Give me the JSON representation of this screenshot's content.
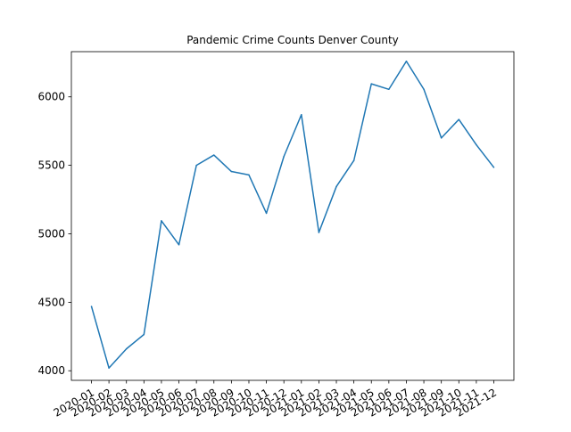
{
  "chart_data": {
    "type": "line",
    "title": "Pandemic Crime Counts Denver County",
    "xlabel": "",
    "ylabel": "",
    "categories": [
      "2020-01",
      "2020-02",
      "2020-03",
      "2020-04",
      "2020-05",
      "2020-06",
      "2020-07",
      "2020-08",
      "2020-09",
      "2020-10",
      "2020-11",
      "2020-12",
      "2021-01",
      "2021-02",
      "2021-03",
      "2021-04",
      "2021-05",
      "2021-06",
      "2021-07",
      "2021-08",
      "2021-09",
      "2021-10",
      "2021-11",
      "2021-12"
    ],
    "series": [
      {
        "values": [
          4470,
          4020,
          4160,
          4265,
          5095,
          4920,
          5500,
          5575,
          5455,
          5430,
          5150,
          5565,
          5870,
          5010,
          5345,
          5535,
          6095,
          6055,
          6260,
          6055,
          5700,
          5835,
          5650,
          5485
        ]
      }
    ],
    "ylim": [
      3930,
      6330
    ],
    "yticks": [
      4000,
      4500,
      5000,
      5500,
      6000
    ],
    "grid": false,
    "legend": "none",
    "colors": {
      "line": "#1f77b4",
      "axes": "#000000",
      "background": "#ffffff"
    }
  }
}
